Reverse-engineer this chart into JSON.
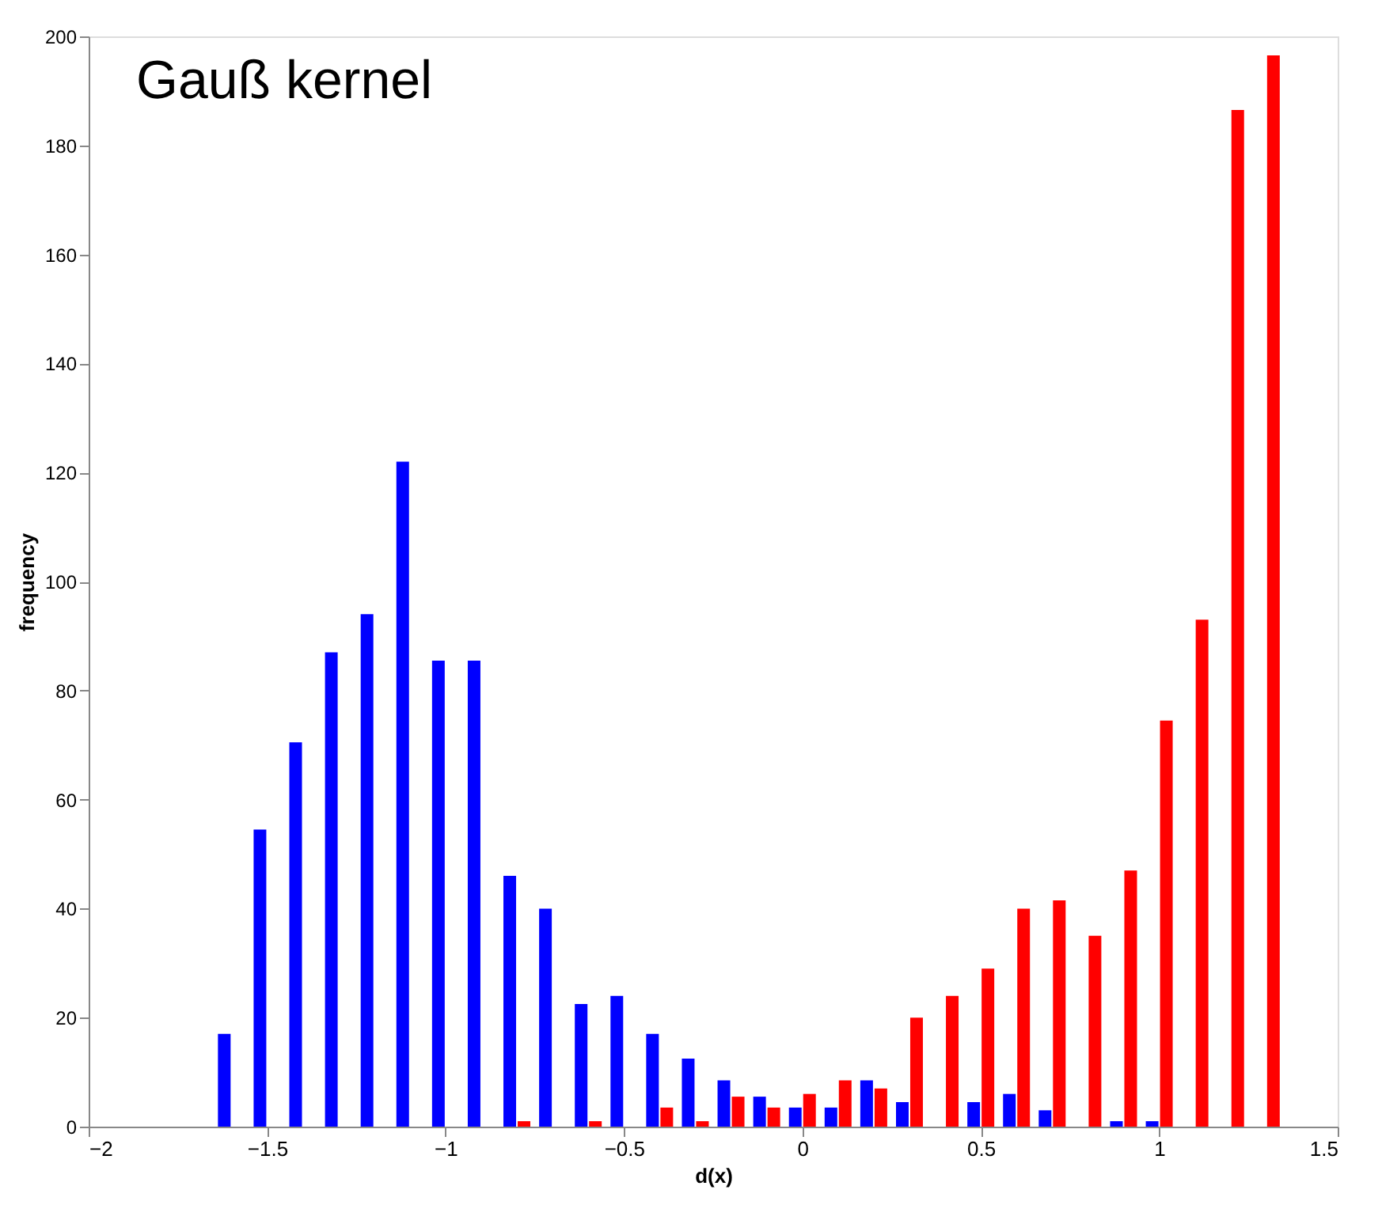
{
  "chart_data": {
    "type": "bar",
    "title": "Gauß kernel",
    "xlabel": "d(x)",
    "ylabel": "frequency",
    "x": [
      -1.6,
      -1.5,
      -1.4,
      -1.3,
      -1.2,
      -1.1,
      -1.0,
      -0.9,
      -0.8,
      -0.7,
      -0.6,
      -0.5,
      -0.4,
      -0.3,
      -0.2,
      -0.1,
      0,
      0.1,
      0.2,
      0.3,
      0.4,
      0.5,
      0.6,
      0.7,
      0.8,
      0.9,
      1.0,
      1.1,
      1.2,
      1.3
    ],
    "series": [
      {
        "color": "#0000ff",
        "values": [
          17,
          54.5,
          70.5,
          87,
          94,
          122,
          85.5,
          85.5,
          46,
          40,
          22.5,
          24,
          17,
          12.5,
          8.5,
          5.5,
          3.5,
          3.5,
          8.5,
          4.5,
          0,
          4.5,
          6,
          3,
          0,
          1,
          1,
          0,
          0,
          0
        ]
      },
      {
        "color": "#ff0000",
        "values": [
          0,
          0,
          0,
          0,
          0,
          0,
          0,
          0,
          1,
          0,
          1,
          0,
          3.5,
          1,
          5.5,
          3.5,
          6,
          8.5,
          7,
          20,
          24,
          29,
          40,
          41.5,
          35,
          47,
          74.5,
          93,
          186.5,
          196.5
        ]
      }
    ],
    "xlim": [
      -2,
      1.5
    ],
    "xticks": [
      -2,
      -1.5,
      -1,
      -0.5,
      0,
      0.5,
      1,
      1.5
    ],
    "ylim": [
      0,
      200
    ],
    "yticks": [
      0,
      20,
      40,
      60,
      80,
      100,
      120,
      140,
      160,
      180,
      200
    ],
    "grid": false
  }
}
